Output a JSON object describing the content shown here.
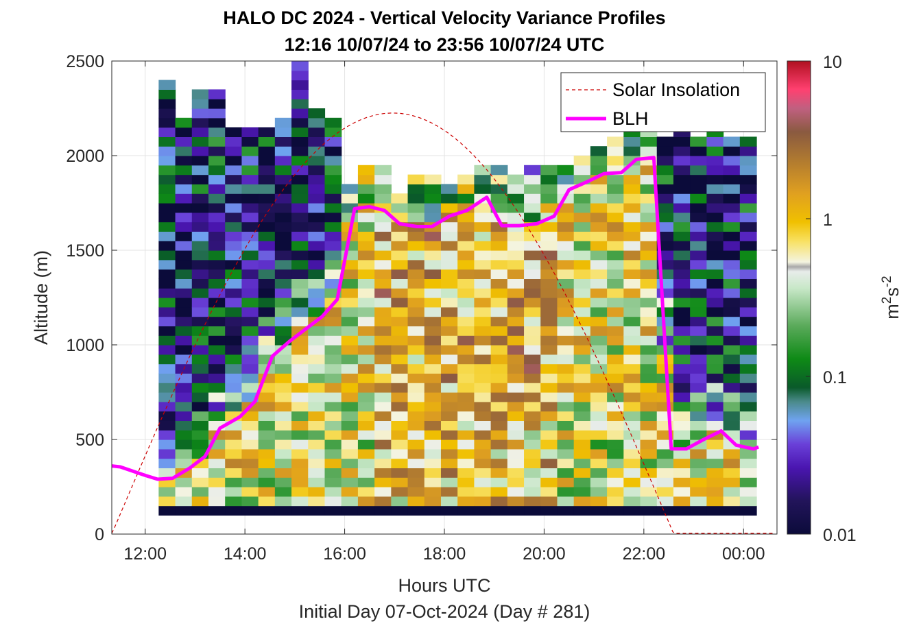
{
  "chart_data": {
    "type": "heatmap",
    "title_line1": "HALO DC 2024 - Vertical Velocity Variance Profiles",
    "title_line2": "12:16 10/07/24 to 23:56 10/07/24  UTC",
    "xlabel": "Hours UTC",
    "xlabel2": "Initial Day 07-Oct-2024 (Day # 281)",
    "ylabel": "Altitude (m)",
    "xlim": [
      11.33,
      24.67
    ],
    "ylim": [
      0,
      2500
    ],
    "x_ticks": [
      12,
      14,
      16,
      18,
      20,
      22,
      24
    ],
    "x_tick_labels": [
      "12:00",
      "14:00",
      "16:00",
      "18:00",
      "20:00",
      "22:00",
      "00:00"
    ],
    "y_ticks": [
      0,
      500,
      1000,
      1500,
      2000,
      2500
    ],
    "y_tick_labels": [
      "0",
      "500",
      "1000",
      "1500",
      "2000",
      "2500"
    ],
    "colorbar": {
      "scale": "log",
      "range": [
        0.01,
        10
      ],
      "ticks": [
        0.01,
        0.1,
        1,
        10
      ],
      "tick_labels": [
        "0.01",
        "0.1",
        "1",
        "10"
      ],
      "label_base": "m",
      "label_sup1": "2",
      "label_mid": "s",
      "label_sup2": "-2"
    },
    "heatmap_summary": {
      "time_start": 12.27,
      "time_end": 23.93,
      "time_step_hours": 0.333,
      "altitude_step_m": 50,
      "description": "Low variance (0.01–0.05) above BLH before ~16:00 and after ~22:30; high variance (0.5–3) inside convective boundary layer 16:00–22:00"
    },
    "legend": {
      "position": "top-right",
      "entries": [
        "Solar Insolation",
        "BLH"
      ]
    },
    "series": [
      {
        "name": "BLH",
        "color": "#ff00ff",
        "x": [
          11.33,
          11.5,
          12.0,
          12.25,
          12.55,
          12.9,
          13.2,
          13.5,
          13.9,
          14.2,
          14.55,
          14.9,
          15.2,
          15.55,
          15.85,
          16.2,
          16.5,
          16.8,
          17.1,
          17.45,
          17.75,
          18.1,
          18.45,
          18.85,
          19.15,
          19.5,
          19.85,
          20.2,
          20.5,
          20.85,
          21.2,
          21.55,
          21.85,
          22.2,
          22.55,
          22.85,
          23.2,
          23.55,
          23.85,
          24.2,
          24.3
        ],
        "y": [
          360,
          355,
          310,
          290,
          295,
          350,
          410,
          560,
          620,
          700,
          940,
          1020,
          1080,
          1150,
          1240,
          1720,
          1730,
          1710,
          1640,
          1625,
          1625,
          1680,
          1710,
          1780,
          1630,
          1630,
          1640,
          1680,
          1820,
          1860,
          1905,
          1910,
          1980,
          1990,
          450,
          450,
          500,
          545,
          470,
          450,
          460
        ]
      },
      {
        "name": "Solar Insolation",
        "color": "#cc0000",
        "sunrise": 11.33,
        "solar_noon": 16.95,
        "sunset": 22.6,
        "peak": 2225
      }
    ]
  }
}
